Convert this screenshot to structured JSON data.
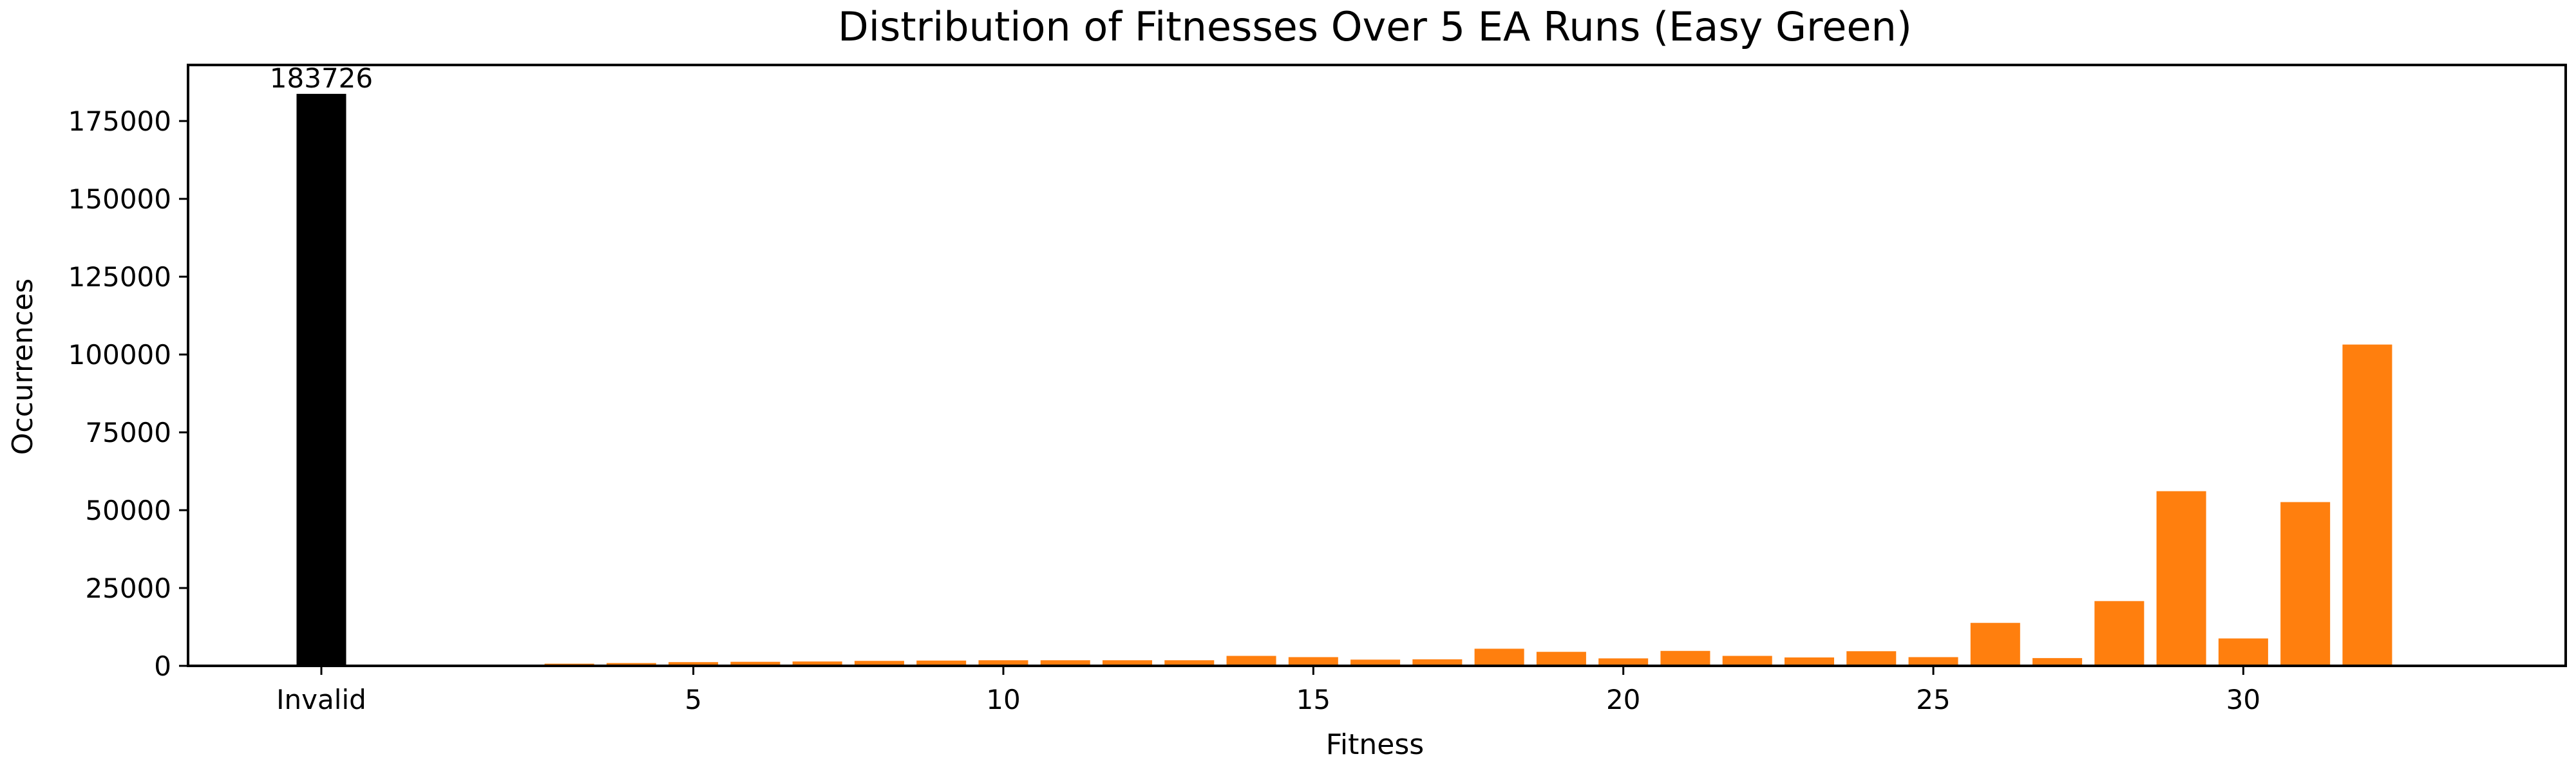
{
  "chart_data": {
    "type": "bar",
    "title": "Distribution of Fitnesses Over 5 EA Runs (Easy Green)",
    "xlabel": "Fitness",
    "ylabel": "Occurrences",
    "ylim": [
      0,
      193000
    ],
    "yticks": [
      0,
      25000,
      50000,
      75000,
      100000,
      125000,
      150000,
      175000
    ],
    "xticks": [
      {
        "label": "Invalid",
        "x": 0
      },
      {
        "label": "5",
        "x": 6
      },
      {
        "label": "10",
        "x": 11
      },
      {
        "label": "15",
        "x": 16
      },
      {
        "label": "20",
        "x": 21
      },
      {
        "label": "25",
        "x": 26
      },
      {
        "label": "30",
        "x": 31
      }
    ],
    "xlim": [
      -2.15,
      36.2
    ],
    "invalid_bar": {
      "label": "Invalid",
      "x": 0,
      "value": 183726,
      "color": "#000000",
      "data_label": "183726"
    },
    "fitness_bars": {
      "color": "#ff7f0e",
      "fitness": [
        1,
        2,
        3,
        4,
        5,
        6,
        7,
        8,
        9,
        10,
        11,
        12,
        13,
        14,
        15,
        16,
        17,
        18,
        19,
        20,
        21,
        22,
        23,
        24,
        25,
        26,
        27,
        28,
        29,
        30,
        31,
        32,
        33
      ],
      "values": [
        100,
        200,
        400,
        700,
        900,
        1200,
        1300,
        1400,
        1600,
        1700,
        1800,
        1800,
        1800,
        1800,
        3200,
        2800,
        2000,
        2100,
        5500,
        4500,
        2400,
        4800,
        3200,
        2700,
        4700,
        2800,
        13800,
        2500,
        20800,
        56100,
        8800,
        52600,
        103200
      ]
    },
    "grid": false,
    "legend": "none"
  }
}
